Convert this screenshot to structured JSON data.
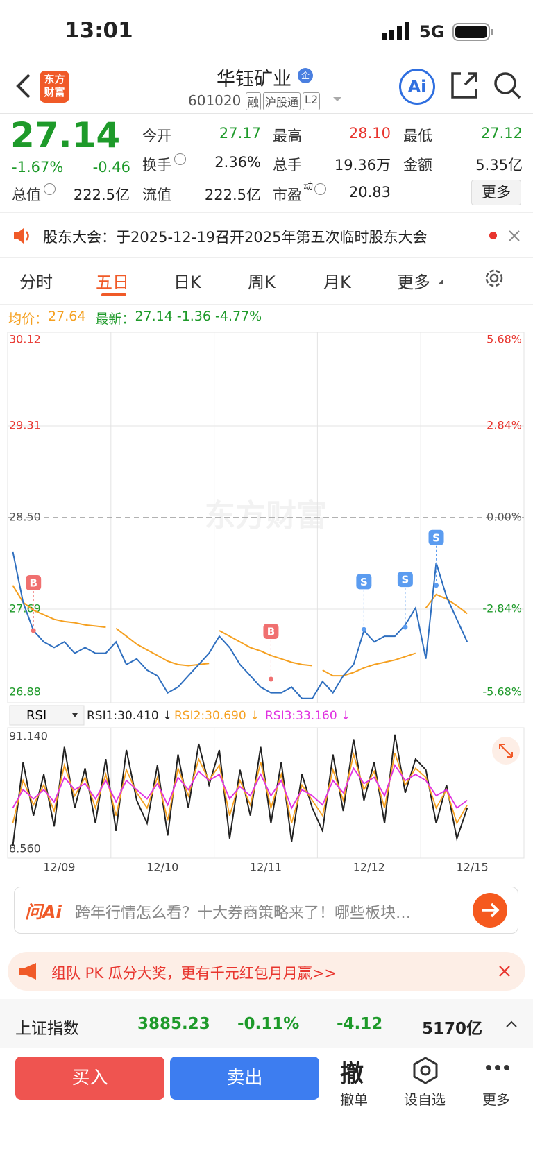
{
  "status": {
    "time": "13:01",
    "network": "5G"
  },
  "header": {
    "logo": [
      "东方",
      "财富"
    ],
    "title": "华钰矿业",
    "badge": "企",
    "code": "601020",
    "tags": [
      "融",
      "沪股通",
      "L2"
    ],
    "ai": "Ai"
  },
  "quote": {
    "price": "27.14",
    "change_pct": "-1.67%",
    "change": "-0.46",
    "row1": [
      {
        "label": "今开",
        "value": "27.17"
      },
      {
        "label": "最高",
        "value": "28.10"
      },
      {
        "label": "最低",
        "value": "27.12"
      }
    ],
    "row2": [
      {
        "label": "换手",
        "value": "2.36%"
      },
      {
        "label": "总手",
        "value": "19.36万"
      },
      {
        "label": "金额",
        "value": "5.35亿"
      }
    ],
    "row3": [
      {
        "label": "总值",
        "value": "222.5亿"
      },
      {
        "label": "流值",
        "value": "222.5亿"
      },
      {
        "label": "市盈",
        "sup": "动",
        "value": "20.83"
      }
    ],
    "more": "更多"
  },
  "notice": "股东大会：于2025-12-19召开2025年第五次临时股东大会",
  "tabs": [
    "分时",
    "五日",
    "日K",
    "周K",
    "月K",
    "更多"
  ],
  "legend": {
    "avg_label": "均价：",
    "avg": "27.64",
    "last_label": "最新：",
    "last": "27.14",
    "change": "-1.36",
    "change_pct": "-4.77%"
  },
  "chart": {
    "type": "line",
    "watermark": "东方财富",
    "categories": [
      "12/09",
      "12/10",
      "12/11",
      "12/12",
      "12/15"
    ],
    "ylim": [
      26.88,
      30.12
    ],
    "yticks": [
      30.12,
      29.31,
      {
        "value": 28.5,
        "label": "28.50"
      },
      27.69,
      26.88
    ],
    "y2lim": [
      -5.68,
      5.68
    ],
    "y2ticks": [
      {
        "value": 5.68,
        "label": "5.68%"
      },
      {
        "value": 2.84,
        "label": "2.84%"
      },
      {
        "value": 0,
        "label": "0.00%"
      },
      {
        "value": -2.84,
        "label": "-2.84%"
      },
      {
        "value": -5.68,
        "label": "-5.68%"
      }
    ],
    "series": [
      {
        "name": "最新",
        "color": "#2f6fbf",
        "values": [
          28.2,
          27.75,
          27.5,
          27.4,
          27.35,
          27.4,
          27.3,
          27.35,
          27.3,
          27.3,
          27.4,
          27.2,
          27.25,
          27.15,
          27.1,
          26.95,
          27.0,
          27.1,
          27.2,
          27.3,
          27.45,
          27.35,
          27.2,
          27.1,
          27.0,
          26.95,
          26.95,
          27.0,
          26.9,
          26.9,
          27.05,
          26.95,
          27.1,
          27.2,
          27.5,
          27.4,
          27.45,
          27.45,
          27.55,
          27.7,
          27.25,
          28.1,
          27.8,
          27.6,
          27.4,
          null,
          null,
          null,
          null,
          null
        ]
      },
      {
        "name": "均价",
        "color": "#f5a020",
        "values": [
          27.9,
          27.75,
          27.68,
          27.64,
          27.6,
          27.58,
          27.57,
          27.55,
          27.54,
          27.53,
          27.52,
          27.45,
          27.38,
          27.33,
          27.28,
          27.23,
          27.2,
          27.19,
          27.2,
          27.21,
          27.5,
          27.45,
          27.4,
          27.35,
          27.32,
          27.28,
          27.25,
          27.22,
          27.2,
          27.19,
          27.15,
          27.1,
          27.1,
          27.13,
          27.17,
          27.2,
          27.22,
          27.24,
          27.27,
          27.3,
          27.7,
          27.82,
          27.78,
          27.72,
          27.65,
          null,
          null,
          null,
          null,
          null
        ]
      }
    ],
    "markers": [
      {
        "label": "B",
        "x": 2,
        "value": 27.5
      },
      {
        "label": "B",
        "x": 25,
        "value": 27.07
      },
      {
        "label": "S",
        "x": 34,
        "value": 27.51
      },
      {
        "label": "S",
        "x": 38,
        "value": 27.53
      },
      {
        "label": "S",
        "x": 41,
        "value": 27.9
      }
    ]
  },
  "rsi": {
    "type": "line",
    "select": "RSI",
    "labels": [
      "RSI1:30.410 ↓",
      "RSI2:30.690 ↓",
      "RSI3:33.160 ↓"
    ],
    "ylim": [
      8.56,
      91.14
    ],
    "yticks": [
      {
        "value": 91.14,
        "label": "91.140"
      },
      {
        "value": 8.56,
        "label": "8.560"
      }
    ],
    "series": [
      {
        "name": "RSI1",
        "color": "#222222",
        "values": [
          15,
          70,
          35,
          62,
          28,
          80,
          40,
          66,
          30,
          72,
          25,
          78,
          45,
          30,
          68,
          22,
          75,
          40,
          82,
          55,
          78,
          20,
          65,
          35,
          80,
          30,
          70,
          18,
          62,
          40,
          25,
          75,
          38,
          85,
          45,
          70,
          30,
          88,
          50,
          72,
          65,
          30,
          55,
          20,
          40,
          null,
          null,
          null,
          null,
          null
        ]
      },
      {
        "name": "RSI2",
        "color": "#f5a020",
        "values": [
          30,
          58,
          42,
          55,
          38,
          68,
          48,
          60,
          40,
          62,
          35,
          65,
          50,
          40,
          60,
          32,
          66,
          48,
          72,
          58,
          68,
          35,
          58,
          42,
          70,
          40,
          62,
          30,
          55,
          45,
          35,
          65,
          45,
          75,
          52,
          64,
          40,
          76,
          55,
          66,
          60,
          40,
          52,
          30,
          42,
          null,
          null,
          null,
          null,
          null
        ]
      },
      {
        "name": "RSI3",
        "color": "#e030e0",
        "values": [
          40,
          52,
          46,
          52,
          44,
          60,
          52,
          56,
          46,
          58,
          44,
          58,
          52,
          46,
          56,
          42,
          60,
          52,
          64,
          58,
          62,
          46,
          54,
          48,
          62,
          48,
          58,
          40,
          52,
          48,
          42,
          58,
          50,
          66,
          56,
          60,
          48,
          68,
          58,
          62,
          58,
          48,
          52,
          40,
          45,
          null,
          null,
          null,
          null,
          null
        ]
      }
    ]
  },
  "ai_box": {
    "logo": "问Ai",
    "text": "跨年行情怎么看？十大券商策略来了！哪些板块…"
  },
  "banner": "组队 PK 瓜分大奖，更有千元红包月月赢>>",
  "index": {
    "name": "上证指数",
    "value": "3885.23",
    "change_pct": "-0.11%",
    "change": "-4.12",
    "amount": "5170亿"
  },
  "bottom": {
    "buy": "买入",
    "sell": "卖出",
    "items": [
      {
        "icon": "撤",
        "label": "撤单"
      },
      {
        "label": "设自选"
      },
      {
        "label": "更多"
      }
    ]
  }
}
